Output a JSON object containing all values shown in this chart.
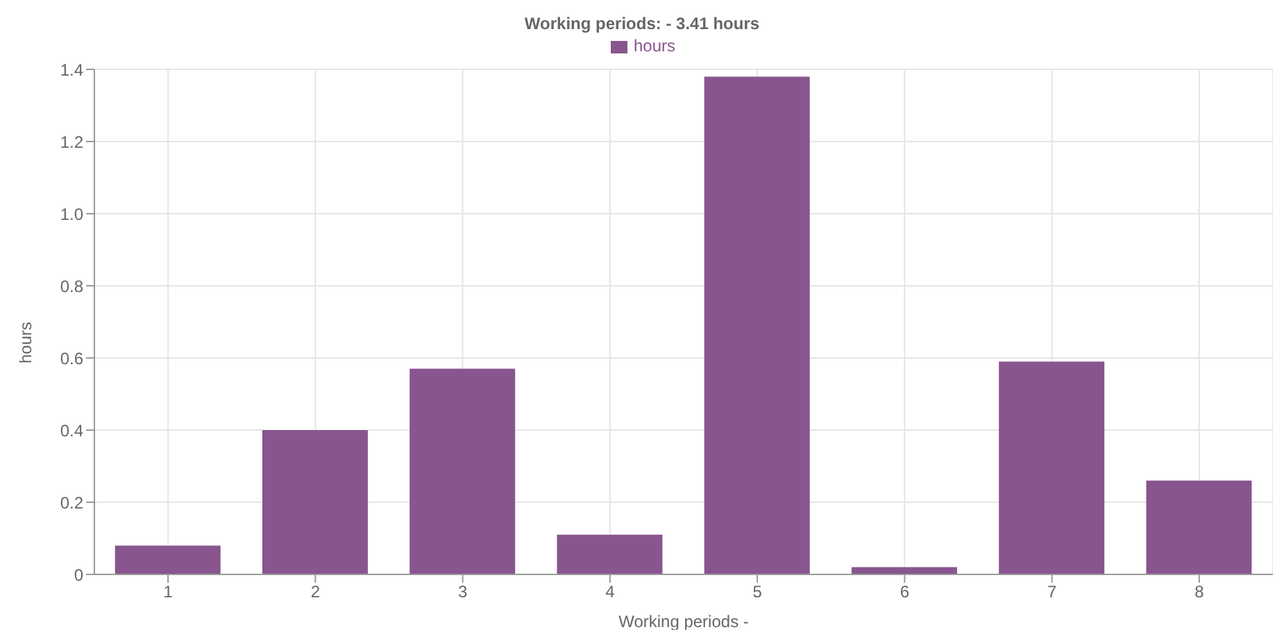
{
  "chart_data": {
    "type": "bar",
    "title": "Working periods: - 3.41 hours",
    "xlabel": "Working periods -",
    "ylabel": "hours",
    "categories": [
      "1",
      "2",
      "3",
      "4",
      "5",
      "6",
      "7",
      "8"
    ],
    "series": [
      {
        "name": "hours",
        "color": "#88558f",
        "values": [
          0.08,
          0.4,
          0.57,
          0.11,
          1.38,
          0.02,
          0.59,
          0.26
        ]
      }
    ],
    "ylim": [
      0,
      1.4
    ],
    "yticks": [
      0,
      0.2,
      0.4,
      0.6,
      0.8,
      {
        "value": 1,
        "label": "1.0"
      },
      1.2,
      1.4
    ],
    "grid": true,
    "legend": "top"
  }
}
